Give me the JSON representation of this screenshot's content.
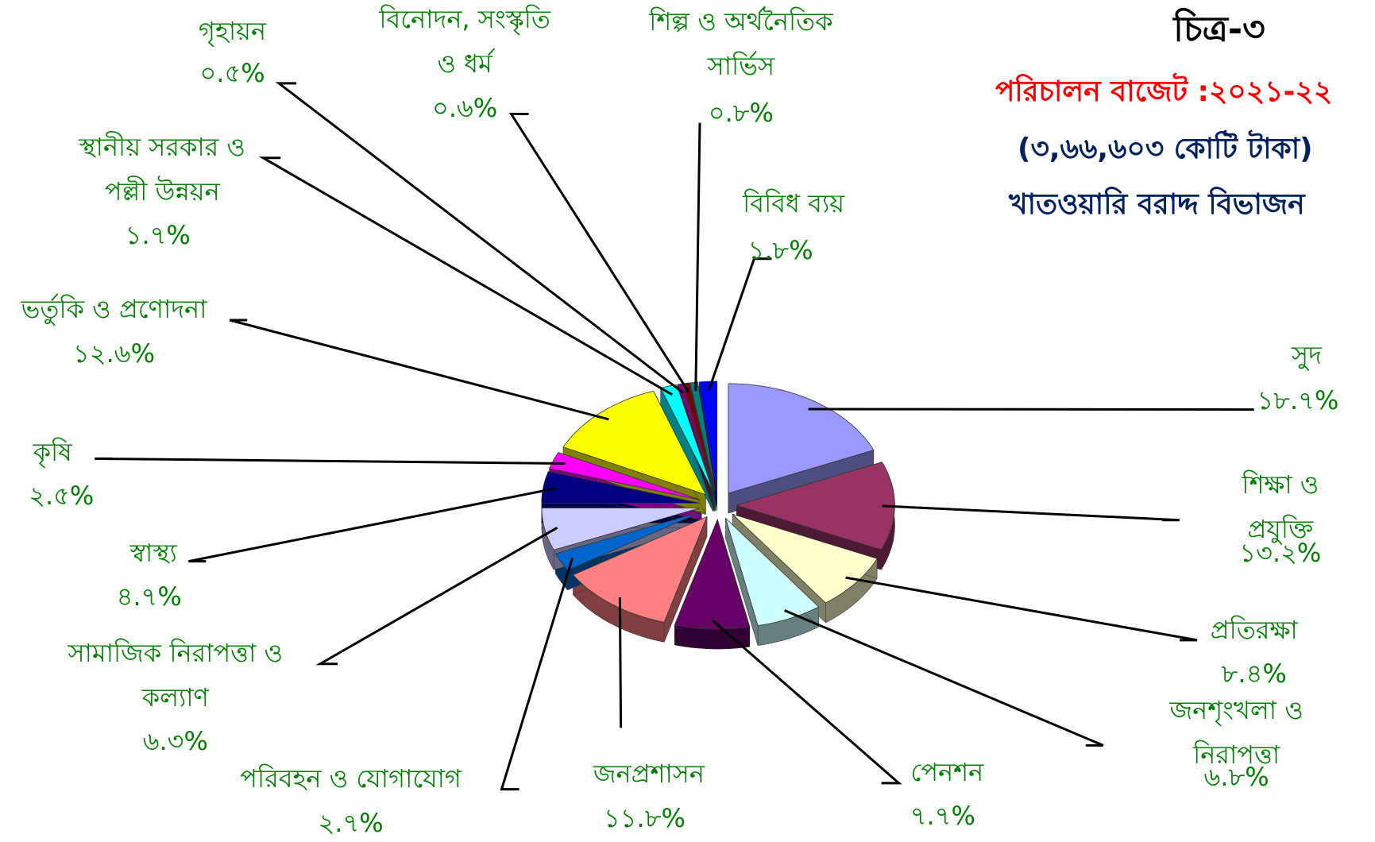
{
  "chart_data": {
    "type": "pie",
    "title": "চিত্র-৩",
    "subtitle": [
      "পরিচালন বাজেট :২০২১-২২",
      "(৩,৬৬,৬০৩ কোটি টাকা)",
      "খাতওয়ারি বরাদ্দ বিভাজন"
    ],
    "categories": [
      "সুদ",
      "শিক্ষা ও প্রযুক্তি",
      "প্রতিরক্ষা",
      "জনশৃংখলা ও নিরাপত্তা",
      "পেনশন",
      "জনপ্রশাসন",
      "পরিবহন ও যোগাযোগ",
      "সামাজিক নিরাপত্তা ও\nকল্যাণ",
      "স্বাস্থ্য",
      "কৃষি",
      "ভর্তুকি ও প্রণোদনা",
      "স্থানীয় সরকার ও\nপল্লী উন্নয়ন",
      "গৃহায়ন",
      "বিনোদন, সংস্কৃতি\nও ধর্ম",
      "শিল্প ও অর্থনৈতিক\nসার্ভিস",
      "বিবিধ ব্যয়"
    ],
    "values": [
      18.7,
      13.2,
      8.4,
      6.8,
      7.7,
      11.8,
      2.7,
      6.3,
      4.7,
      2.5,
      12.6,
      1.7,
      0.5,
      0.6,
      0.8,
      1.8
    ],
    "value_labels": [
      "১৮.৭%",
      "১৩.২%",
      "৮.৪%",
      "৬.৮%",
      "৭.৭%",
      "১১.৮%",
      "২.৭%",
      "৬.৩%",
      "৪.৭%",
      "২.৫%",
      "১২.৬%",
      "১.৭%",
      "০.৫%",
      "০.৬%",
      "০.৮%",
      "১.৮%"
    ],
    "colors": [
      "#9999ff",
      "#993366",
      "#ffffcc",
      "#ccffff",
      "#660066",
      "#ff8080",
      "#0066cc",
      "#ccccff",
      "#000080",
      "#ff00ff",
      "#ffff00",
      "#00ffff",
      "#800080",
      "#800000",
      "#008080",
      "#0000ff"
    ]
  }
}
